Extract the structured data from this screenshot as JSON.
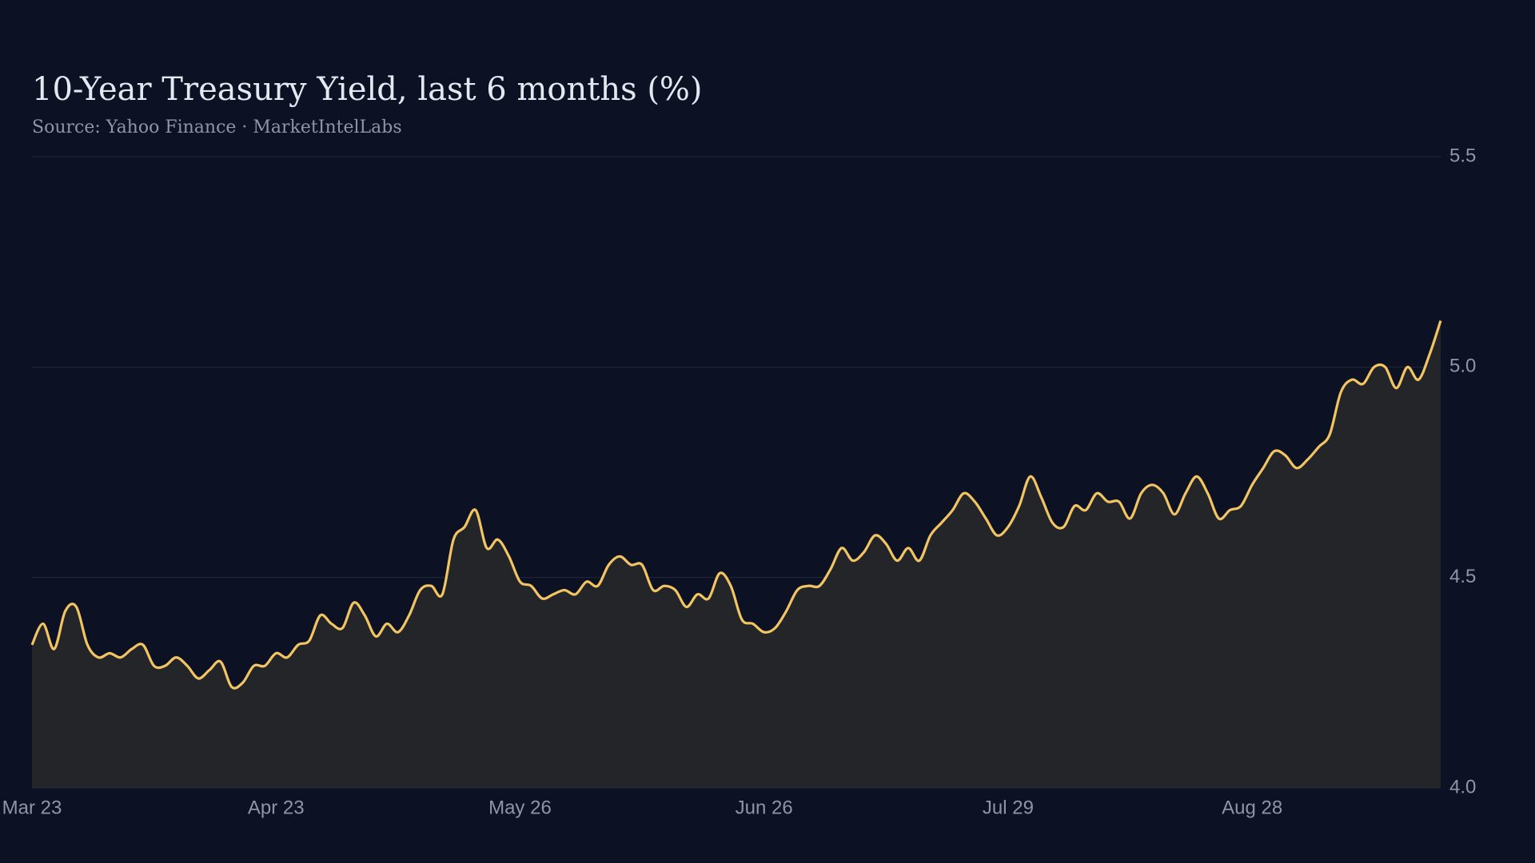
{
  "chart_data": {
    "type": "line",
    "title": "10-Year Treasury Yield, last 6 months (%)",
    "subtitle": "Source: Yahoo Finance · MarketIntelLabs",
    "categories": [
      "Mar 23",
      null,
      null,
      null,
      null,
      null,
      null,
      null,
      null,
      null,
      null,
      null,
      null,
      null,
      null,
      null,
      null,
      null,
      null,
      null,
      null,
      null,
      "Apr 23",
      null,
      null,
      null,
      null,
      null,
      null,
      null,
      null,
      null,
      null,
      null,
      null,
      null,
      null,
      null,
      null,
      null,
      null,
      null,
      null,
      null,
      "May 26",
      null,
      null,
      null,
      null,
      null,
      null,
      null,
      null,
      null,
      null,
      null,
      null,
      null,
      null,
      null,
      null,
      null,
      null,
      null,
      null,
      null,
      "Jun 26",
      null,
      null,
      null,
      null,
      null,
      null,
      null,
      null,
      null,
      null,
      null,
      null,
      null,
      null,
      null,
      null,
      null,
      null,
      null,
      null,
      null,
      "Jul 29",
      null,
      null,
      null,
      null,
      null,
      null,
      null,
      null,
      null,
      null,
      null,
      null,
      null,
      null,
      null,
      null,
      null,
      null,
      null,
      null,
      null,
      "Aug 28",
      null,
      null,
      null,
      null,
      null,
      null,
      null,
      null,
      null,
      null,
      null,
      null,
      null,
      null,
      null,
      null,
      null
    ],
    "series": [
      {
        "name": "10-Year Treasury Yield",
        "color": "#f2c462",
        "values": [
          4.34,
          4.39,
          4.33,
          4.42,
          4.43,
          4.34,
          4.31,
          4.32,
          4.31,
          4.33,
          4.34,
          4.29,
          4.29,
          4.31,
          4.29,
          4.26,
          4.28,
          4.3,
          4.24,
          4.25,
          4.29,
          4.29,
          4.32,
          4.31,
          4.34,
          4.35,
          4.41,
          4.39,
          4.38,
          4.44,
          4.41,
          4.36,
          4.39,
          4.37,
          4.41,
          4.47,
          4.48,
          4.46,
          4.59,
          4.62,
          4.66,
          4.57,
          4.59,
          4.55,
          4.49,
          4.48,
          4.45,
          4.46,
          4.47,
          4.46,
          4.49,
          4.48,
          4.53,
          4.55,
          4.53,
          4.53,
          4.47,
          4.48,
          4.47,
          4.43,
          4.46,
          4.45,
          4.51,
          4.48,
          4.4,
          4.39,
          4.37,
          4.38,
          4.42,
          4.47,
          4.48,
          4.48,
          4.52,
          4.57,
          4.54,
          4.56,
          4.6,
          4.58,
          4.54,
          4.57,
          4.54,
          4.6,
          4.63,
          4.66,
          4.7,
          4.68,
          4.64,
          4.6,
          4.62,
          4.67,
          4.74,
          4.69,
          4.63,
          4.62,
          4.67,
          4.66,
          4.7,
          4.68,
          4.68,
          4.64,
          4.7,
          4.72,
          4.7,
          4.65,
          4.7,
          4.74,
          4.7,
          4.64,
          4.66,
          4.67,
          4.72,
          4.76,
          4.8,
          4.79,
          4.76,
          4.78,
          4.81,
          4.84,
          4.94,
          4.97,
          4.96,
          5.0,
          5.0,
          4.95,
          5.0,
          4.97,
          5.03,
          5.11
        ]
      }
    ],
    "ylim": [
      4.0,
      5.5
    ],
    "yticks": [
      {
        "value": 4.0,
        "label": "4.0"
      },
      4.5,
      {
        "value": 5.0,
        "label": "5.0"
      },
      5.5
    ],
    "grid": true
  }
}
